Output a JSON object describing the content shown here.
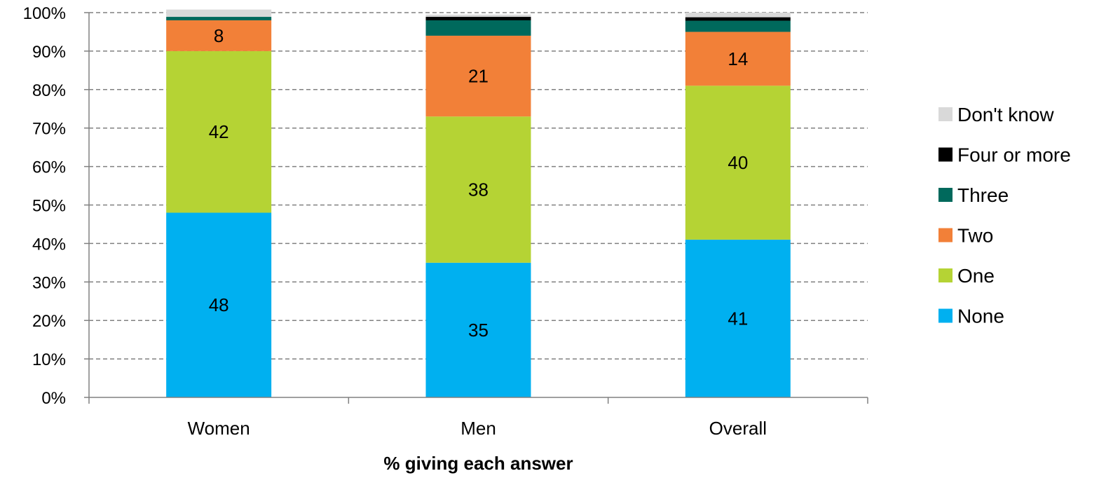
{
  "chart_data": {
    "type": "bar",
    "stacked": true,
    "categories": [
      "Women",
      "Men",
      "Overall"
    ],
    "xlabel": "% giving each answer",
    "ylabel": "",
    "ylim": [
      0,
      100
    ],
    "y_ticks": [
      "0%",
      "10%",
      "20%",
      "30%",
      "40%",
      "50%",
      "60%",
      "70%",
      "80%",
      "90%",
      "100%"
    ],
    "grid": true,
    "legend_position": "right",
    "series": [
      {
        "name": "None",
        "color": "#00B0F0",
        "values": [
          48,
          35,
          41
        ],
        "labels": [
          "48",
          "35",
          "41"
        ]
      },
      {
        "name": "One",
        "color": "#B5D334",
        "values": [
          42,
          38,
          40
        ],
        "labels": [
          "42",
          "38",
          "40"
        ]
      },
      {
        "name": "Two",
        "color": "#F28038",
        "values": [
          8,
          21,
          14
        ],
        "labels": [
          "8",
          "21",
          "14"
        ]
      },
      {
        "name": "Three",
        "color": "#00695C",
        "values": [
          0.9,
          4,
          2.9
        ],
        "labels": [
          "",
          "",
          ""
        ]
      },
      {
        "name": "Four or more",
        "color": "#000000",
        "values": [
          0,
          0.9,
          0.9
        ],
        "labels": [
          "",
          "",
          ""
        ]
      },
      {
        "name": "Don't know",
        "color": "#D9D9D9",
        "values": [
          1.9,
          0.6,
          1.2
        ],
        "labels": [
          "",
          "",
          ""
        ]
      }
    ],
    "legend_order": [
      "Don't know",
      "Four or more",
      "Three",
      "Two",
      "One",
      "None"
    ]
  }
}
